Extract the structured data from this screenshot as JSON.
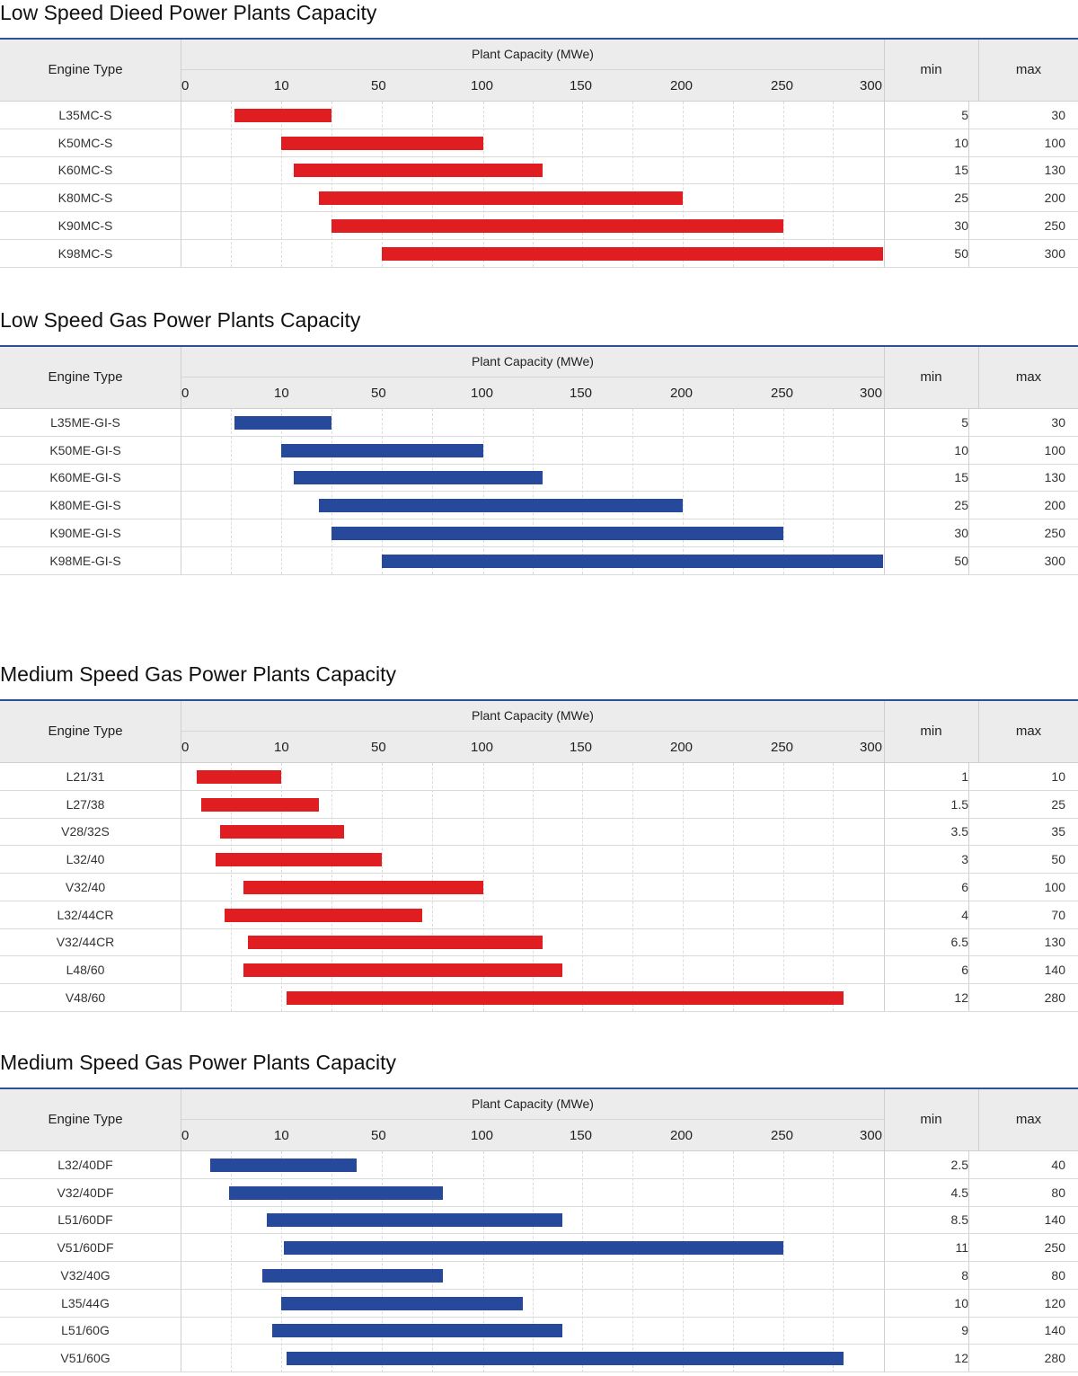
{
  "header_labels": {
    "engine_type": "Engine Type",
    "plant_capacity": "Plant Capacity (MWe)",
    "min": "min",
    "max": "max"
  },
  "axis": {
    "ticks": [
      "0",
      "10",
      "50",
      "100",
      "150",
      "200",
      "250",
      "300"
    ],
    "scale": "piecewise: 0,10,50,100,150,200,250,300 evenly spaced"
  },
  "colors": {
    "red": "#e01e22",
    "blue": "#26499b",
    "header_rule": "#2f4f96"
  },
  "chart_data": [
    {
      "type": "bar",
      "title": "Low Speed Dieed Power Plants Capacity",
      "bar_color": "red",
      "categories": [
        "L35MC-S",
        "K50MC-S",
        "K60MC-S",
        "K80MC-S",
        "K90MC-S",
        "K98MC-S"
      ],
      "min": [
        "5",
        "10",
        "15",
        "25",
        "30",
        "50"
      ],
      "max": [
        "30",
        "100",
        "130",
        "200",
        "250",
        "300"
      ]
    },
    {
      "type": "bar",
      "title": "Low Speed Gas Power Plants Capacity",
      "bar_color": "blue",
      "categories": [
        "L35ME-GI-S",
        "K50ME-GI-S",
        "K60ME-GI-S",
        "K80ME-GI-S",
        "K90ME-GI-S",
        "K98ME-GI-S"
      ],
      "min": [
        "5",
        "10",
        "15",
        "25",
        "30",
        "50"
      ],
      "max": [
        "30",
        "100",
        "130",
        "200",
        "250",
        "300"
      ]
    },
    {
      "type": "bar",
      "title": "Medium Speed Gas Power Plants Capacity",
      "bar_color": "red",
      "categories": [
        "L21/31",
        "L27/38",
        "V28/32S",
        "L32/40",
        "V32/40",
        "L32/44CR",
        "V32/44CR",
        "L48/60",
        "V48/60"
      ],
      "min": [
        "1",
        "1.5",
        "3.5",
        "3",
        "6",
        "4",
        "6.5",
        "6",
        "12"
      ],
      "max": [
        "10",
        "25",
        "35",
        "50",
        "100",
        "70",
        "130",
        "140",
        "280"
      ]
    },
    {
      "type": "bar",
      "title": "Medium Speed Gas Power Plants Capacity",
      "bar_color": "blue",
      "categories": [
        "L32/40DF",
        "V32/40DF",
        "L51/60DF",
        "V51/60DF",
        "V32/40G",
        "L35/44G",
        "L51/60G",
        "V51/60G"
      ],
      "min": [
        "2.5",
        "4.5",
        "8.5",
        "11",
        "8",
        "10",
        "9",
        "12"
      ],
      "max": [
        "40",
        "80",
        "140",
        "250",
        "80",
        "120",
        "140",
        "280"
      ]
    }
  ]
}
